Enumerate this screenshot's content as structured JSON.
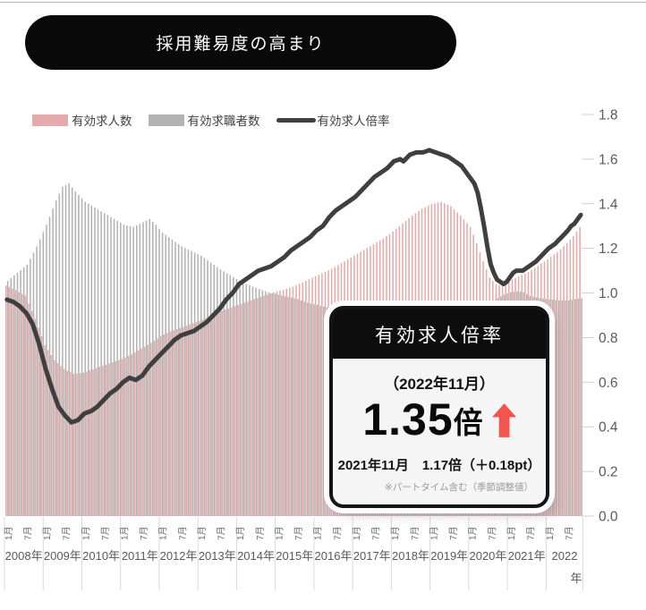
{
  "page": {
    "title": "採用難易度の高まり"
  },
  "colors": {
    "bar_pink": "#e3abab",
    "bar_gray": "#b3b3b3",
    "line_dark": "#3f3f3f",
    "accent_red": "#f2544e",
    "axis_text": "#595959",
    "grid": "#d9d9d9"
  },
  "callout": {
    "title": "有効求人倍率",
    "period": "（2022年11月）",
    "value": "1.35",
    "unit": "倍",
    "previous": "2021年11月　1.17倍（＋0.18pt）",
    "note": "※パートタイム含む（季節調整値）"
  },
  "chart_data": {
    "type": "combo-bar-line",
    "title": "採用難易度の高まり",
    "x_start": "2008-01",
    "x_end": "2022-11",
    "months_total": 179,
    "x_years": [
      "2008年",
      "2009年",
      "2010年",
      "2011年",
      "2012年",
      "2013年",
      "2014年",
      "2015年",
      "2016年",
      "2017年",
      "2018年",
      "2019年",
      "2020年",
      "2021年",
      "2022年"
    ],
    "month_ticks": [
      "1月",
      "7月"
    ],
    "right_axis": {
      "label": "有効求人倍率",
      "min": 0.0,
      "max": 1.8,
      "step": 0.2
    },
    "bar_axis": {
      "hidden": true,
      "unit": "万人",
      "max": 350
    },
    "legend_position": "top-left",
    "grid": "year-separators-below-axis-only",
    "series": [
      {
        "name": "有効求人数",
        "type": "bar",
        "color": "#e3abab",
        "unit": "万人",
        "anchors_month_value": [
          [
            0,
            201
          ],
          [
            3,
            197
          ],
          [
            6,
            192
          ],
          [
            9,
            172
          ],
          [
            12,
            149
          ],
          [
            15,
            136
          ],
          [
            18,
            128
          ],
          [
            21,
            124
          ],
          [
            24,
            125
          ],
          [
            27,
            128
          ],
          [
            30,
            131
          ],
          [
            33,
            134
          ],
          [
            36,
            137
          ],
          [
            39,
            141
          ],
          [
            42,
            146
          ],
          [
            45,
            151
          ],
          [
            48,
            157
          ],
          [
            51,
            161
          ],
          [
            54,
            164
          ],
          [
            57,
            167
          ],
          [
            60,
            170
          ],
          [
            63,
            174
          ],
          [
            66,
            178
          ],
          [
            69,
            181
          ],
          [
            72,
            184
          ],
          [
            75,
            187
          ],
          [
            78,
            190
          ],
          [
            81,
            193
          ],
          [
            84,
            196
          ],
          [
            87,
            198
          ],
          [
            90,
            201
          ],
          [
            93,
            205
          ],
          [
            96,
            209
          ],
          [
            99,
            213
          ],
          [
            102,
            217
          ],
          [
            105,
            222
          ],
          [
            108,
            227
          ],
          [
            111,
            232
          ],
          [
            114,
            237
          ],
          [
            117,
            242
          ],
          [
            120,
            248
          ],
          [
            123,
            255
          ],
          [
            126,
            262
          ],
          [
            129,
            268
          ],
          [
            132,
            272
          ],
          [
            135,
            274
          ],
          [
            138,
            270
          ],
          [
            141,
            262
          ],
          [
            144,
            252
          ],
          [
            146,
            238
          ],
          [
            148,
            222
          ],
          [
            150,
            208
          ],
          [
            152,
            202
          ],
          [
            154,
            200
          ],
          [
            156,
            205
          ],
          [
            159,
            209
          ],
          [
            162,
            213
          ],
          [
            165,
            218
          ],
          [
            168,
            224
          ],
          [
            171,
            230
          ],
          [
            174,
            238
          ],
          [
            176,
            244
          ],
          [
            178,
            252
          ]
        ]
      },
      {
        "name": "有効求職者数",
        "type": "bar",
        "color": "#b3b3b3",
        "unit": "万人",
        "anchors_month_value": [
          [
            0,
            205
          ],
          [
            3,
            212
          ],
          [
            6,
            219
          ],
          [
            9,
            235
          ],
          [
            12,
            254
          ],
          [
            15,
            275
          ],
          [
            17,
            287
          ],
          [
            19,
            290
          ],
          [
            21,
            283
          ],
          [
            24,
            274
          ],
          [
            27,
            269
          ],
          [
            30,
            264
          ],
          [
            33,
            259
          ],
          [
            36,
            254
          ],
          [
            39,
            252
          ],
          [
            42,
            256
          ],
          [
            44,
            259
          ],
          [
            46,
            254
          ],
          [
            48,
            247
          ],
          [
            51,
            241
          ],
          [
            54,
            235
          ],
          [
            57,
            231
          ],
          [
            60,
            227
          ],
          [
            63,
            221
          ],
          [
            66,
            215
          ],
          [
            69,
            210
          ],
          [
            72,
            205
          ],
          [
            75,
            201
          ],
          [
            78,
            198
          ],
          [
            81,
            195
          ],
          [
            84,
            193
          ],
          [
            87,
            191
          ],
          [
            90,
            189
          ],
          [
            93,
            186
          ],
          [
            96,
            184
          ],
          [
            99,
            182
          ],
          [
            102,
            180
          ],
          [
            105,
            178
          ],
          [
            108,
            176
          ],
          [
            111,
            175
          ],
          [
            114,
            174
          ],
          [
            117,
            173
          ],
          [
            120,
            172
          ],
          [
            123,
            171
          ],
          [
            126,
            171
          ],
          [
            129,
            170
          ],
          [
            132,
            170
          ],
          [
            135,
            170
          ],
          [
            138,
            170
          ],
          [
            141,
            170
          ],
          [
            144,
            171
          ],
          [
            146,
            174
          ],
          [
            148,
            180
          ],
          [
            150,
            186
          ],
          [
            152,
            190
          ],
          [
            154,
            193
          ],
          [
            156,
            195
          ],
          [
            158,
            196
          ],
          [
            160,
            195
          ],
          [
            162,
            192
          ],
          [
            165,
            190
          ],
          [
            168,
            189
          ],
          [
            171,
            188
          ],
          [
            174,
            188
          ],
          [
            176,
            189
          ],
          [
            178,
            190
          ]
        ]
      },
      {
        "name": "有効求人倍率",
        "type": "line",
        "axis": "right",
        "color": "#3f3f3f",
        "latest": {
          "month": "2022-11",
          "value": 1.35
        },
        "anchors_month_value": [
          [
            0,
            0.97
          ],
          [
            2,
            0.96
          ],
          [
            4,
            0.94
          ],
          [
            6,
            0.91
          ],
          [
            8,
            0.86
          ],
          [
            10,
            0.77
          ],
          [
            12,
            0.66
          ],
          [
            14,
            0.57
          ],
          [
            16,
            0.49
          ],
          [
            18,
            0.45
          ],
          [
            20,
            0.42
          ],
          [
            22,
            0.43
          ],
          [
            24,
            0.46
          ],
          [
            26,
            0.47
          ],
          [
            28,
            0.49
          ],
          [
            30,
            0.52
          ],
          [
            32,
            0.55
          ],
          [
            34,
            0.57
          ],
          [
            36,
            0.6
          ],
          [
            38,
            0.62
          ],
          [
            40,
            0.61
          ],
          [
            42,
            0.63
          ],
          [
            44,
            0.67
          ],
          [
            46,
            0.7
          ],
          [
            48,
            0.73
          ],
          [
            50,
            0.76
          ],
          [
            52,
            0.79
          ],
          [
            54,
            0.81
          ],
          [
            56,
            0.82
          ],
          [
            58,
            0.83
          ],
          [
            60,
            0.85
          ],
          [
            62,
            0.87
          ],
          [
            64,
            0.9
          ],
          [
            66,
            0.93
          ],
          [
            68,
            0.97
          ],
          [
            70,
            1.0
          ],
          [
            72,
            1.04
          ],
          [
            74,
            1.06
          ],
          [
            76,
            1.08
          ],
          [
            78,
            1.1
          ],
          [
            80,
            1.11
          ],
          [
            82,
            1.12
          ],
          [
            84,
            1.14
          ],
          [
            86,
            1.16
          ],
          [
            88,
            1.19
          ],
          [
            90,
            1.21
          ],
          [
            92,
            1.23
          ],
          [
            94,
            1.25
          ],
          [
            96,
            1.28
          ],
          [
            98,
            1.3
          ],
          [
            100,
            1.34
          ],
          [
            102,
            1.37
          ],
          [
            104,
            1.39
          ],
          [
            106,
            1.41
          ],
          [
            108,
            1.43
          ],
          [
            110,
            1.46
          ],
          [
            112,
            1.49
          ],
          [
            114,
            1.52
          ],
          [
            116,
            1.54
          ],
          [
            118,
            1.56
          ],
          [
            120,
            1.59
          ],
          [
            122,
            1.6
          ],
          [
            123,
            1.59
          ],
          [
            125,
            1.62
          ],
          [
            127,
            1.63
          ],
          [
            129,
            1.63
          ],
          [
            131,
            1.64
          ],
          [
            133,
            1.63
          ],
          [
            135,
            1.62
          ],
          [
            137,
            1.61
          ],
          [
            139,
            1.59
          ],
          [
            141,
            1.57
          ],
          [
            143,
            1.53
          ],
          [
            145,
            1.49
          ],
          [
            146,
            1.45
          ],
          [
            147,
            1.38
          ],
          [
            148,
            1.3
          ],
          [
            149,
            1.21
          ],
          [
            150,
            1.13
          ],
          [
            151,
            1.09
          ],
          [
            152,
            1.06
          ],
          [
            153,
            1.05
          ],
          [
            154,
            1.04
          ],
          [
            155,
            1.05
          ],
          [
            156,
            1.07
          ],
          [
            157,
            1.09
          ],
          [
            158,
            1.1
          ],
          [
            160,
            1.1
          ],
          [
            162,
            1.12
          ],
          [
            164,
            1.14
          ],
          [
            166,
            1.17
          ],
          [
            168,
            1.2
          ],
          [
            170,
            1.22
          ],
          [
            172,
            1.25
          ],
          [
            174,
            1.28
          ],
          [
            175,
            1.3
          ],
          [
            176,
            1.31
          ],
          [
            177,
            1.33
          ],
          [
            178,
            1.35
          ]
        ]
      }
    ]
  }
}
